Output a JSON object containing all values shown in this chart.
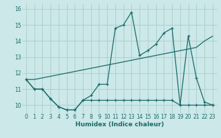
{
  "xlabel": "Humidex (Indice chaleur)",
  "background_color": "#cce8e8",
  "grid_color": "#aed0d0",
  "line_color": "#1a6b6b",
  "xlim": [
    -0.5,
    23.5
  ],
  "ylim": [
    9.5,
    16.3
  ],
  "yticks": [
    10,
    11,
    12,
    13,
    14,
    15,
    16
  ],
  "xticks": [
    0,
    1,
    2,
    3,
    4,
    5,
    6,
    7,
    8,
    9,
    10,
    11,
    12,
    13,
    14,
    15,
    16,
    17,
    18,
    19,
    20,
    21,
    22,
    23
  ],
  "line1_x": [
    0,
    1,
    2,
    3,
    4,
    5,
    6,
    7,
    8,
    9,
    10,
    11,
    12,
    13,
    14,
    15,
    16,
    17,
    18,
    19,
    20,
    21,
    22,
    23
  ],
  "line1_y": [
    11.6,
    11.0,
    11.0,
    10.4,
    9.9,
    9.7,
    9.7,
    10.3,
    10.6,
    11.3,
    11.3,
    14.8,
    15.0,
    15.8,
    13.1,
    13.4,
    13.8,
    14.5,
    14.8,
    10.0,
    14.3,
    11.7,
    10.2,
    10.0
  ],
  "line2_x": [
    0,
    1,
    2,
    3,
    4,
    5,
    6,
    7,
    8,
    9,
    10,
    11,
    12,
    13,
    14,
    15,
    16,
    17,
    18,
    19,
    20,
    21,
    22,
    23
  ],
  "line2_y": [
    11.6,
    11.0,
    11.0,
    10.4,
    9.9,
    9.7,
    9.7,
    10.3,
    10.3,
    10.3,
    10.3,
    10.3,
    10.3,
    10.3,
    10.3,
    10.3,
    10.3,
    10.3,
    10.3,
    10.0,
    10.0,
    10.0,
    10.0,
    10.0
  ],
  "line3_x": [
    0,
    1,
    2,
    3,
    4,
    5,
    6,
    7,
    8,
    9,
    10,
    11,
    12,
    13,
    14,
    15,
    16,
    17,
    18,
    19,
    20,
    21,
    22,
    23
  ],
  "line3_y": [
    11.6,
    11.6,
    11.7,
    11.8,
    11.9,
    12.0,
    12.1,
    12.2,
    12.3,
    12.4,
    12.5,
    12.6,
    12.7,
    12.8,
    12.9,
    13.0,
    13.1,
    13.2,
    13.3,
    13.4,
    13.5,
    13.6,
    14.0,
    14.3
  ]
}
